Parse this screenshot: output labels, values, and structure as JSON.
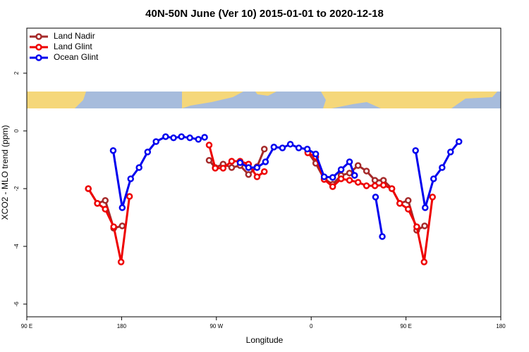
{
  "chart_data": {
    "type": "line",
    "title": "40N-50N June (Ver 10)   2015-01-01 to 2020-12-18",
    "x_label": "Longitude",
    "y_label": "XCO2 - MLO trend (ppm)",
    "xlim": [
      -270,
      180
    ],
    "ylim": [
      -6.44,
      3.56
    ],
    "xticks": [
      {
        "value": -270,
        "label": "90 E"
      },
      {
        "value": -180,
        "label": "180"
      },
      {
        "value": -90,
        "label": "90 W"
      },
      0,
      {
        "value": 90,
        "label": "90 E"
      },
      180
    ],
    "yticks": [
      -6,
      -4,
      -2,
      0,
      2
    ],
    "legend": "top-left",
    "series": [
      {
        "name": "Land Nadir",
        "color": "#a52a2a",
        "x": [
          -211.6,
          -203,
          -195.5,
          -187.5,
          -179.4,
          null,
          -96.9,
          -91.1,
          -83.6,
          -75.5,
          -67.5,
          -59.5,
          -51.4,
          -44.5,
          null,
          -3.2,
          4.3,
          12.3,
          20.4,
          28.4,
          36.4,
          44.5,
          52.5,
          60.5,
          68.6,
          76.6,
          84.1,
          92.1,
          100.2,
          107.7
        ],
        "values": [
          -2,
          -2.51,
          -2.41,
          -3.37,
          -3.29,
          null,
          -1.02,
          -1.27,
          -1.15,
          -1.27,
          -1.2,
          -1.51,
          -1.24,
          -0.63,
          null,
          -0.73,
          -1.12,
          -1.66,
          -1.85,
          -1.54,
          -1.46,
          -1.2,
          -1.39,
          -1.71,
          -1.71,
          -2,
          -2.51,
          -2.41,
          -3.44,
          -3.29
        ]
      },
      {
        "name": "Land Glint",
        "color": "#ee0000",
        "x": [
          -211.6,
          -203,
          -195.5,
          -187.5,
          -180.5,
          -172.5,
          null,
          -96.9,
          -91.1,
          -83.6,
          -75.5,
          -67.5,
          -59.5,
          -51.4,
          -44.5,
          null,
          -3.2,
          4.3,
          12.3,
          20.4,
          28.4,
          36.4,
          44.5,
          52.5,
          60.5,
          68.6,
          76.6,
          84.1,
          92.1,
          100.2,
          107.2,
          115.2
        ],
        "values": [
          -2,
          -2.51,
          -2.71,
          -3.32,
          -4.54,
          -2.27,
          null,
          -0.49,
          -1.29,
          -1.29,
          -1.05,
          -1.05,
          -1.15,
          -1.59,
          -1.41,
          null,
          -0.76,
          -0.9,
          -1.68,
          -1.93,
          -1.66,
          -1.71,
          -1.78,
          -1.9,
          -1.9,
          -1.88,
          -2,
          -2.51,
          -2.71,
          -3.32,
          -4.54,
          -2.29
        ]
      },
      {
        "name": "Ocean Glint",
        "color": "#0000ee",
        "x": [
          -188,
          -179.4,
          -171.4,
          -163.4,
          -155.3,
          -147.3,
          -138.2,
          -130.7,
          -123.2,
          -115.2,
          -107.1,
          -101.2,
          null,
          -67.5,
          -59.5,
          -51.4,
          -43.4,
          -35.4,
          -27.3,
          -19.8,
          -11.8,
          -3.7,
          4.3,
          12.3,
          20.4,
          28.4,
          36.4,
          41.2,
          null,
          61.1,
          67.5,
          null,
          99.1,
          108.2,
          116.2,
          124.3,
          132.3,
          140.3
        ],
        "values": [
          -0.68,
          -2.66,
          -1.66,
          -1.27,
          -0.73,
          -0.37,
          -0.2,
          -0.24,
          -0.2,
          -0.24,
          -0.29,
          -0.22,
          null,
          -1.1,
          -1.27,
          -1.27,
          -1.07,
          -0.56,
          -0.59,
          -0.46,
          -0.59,
          -0.63,
          -0.8,
          -1.59,
          -1.61,
          -1.34,
          -1.07,
          -1.54,
          null,
          -2.29,
          -3.66,
          null,
          -0.68,
          -2.66,
          -1.66,
          -1.27,
          -0.73,
          -0.37
        ]
      }
    ]
  }
}
